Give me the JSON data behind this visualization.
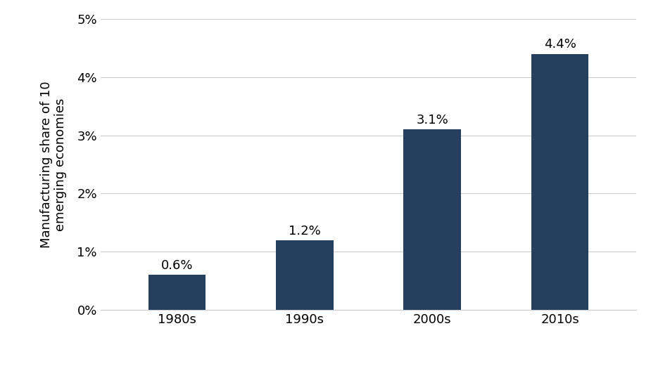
{
  "categories": [
    "1980s",
    "1990s",
    "2000s",
    "2010s"
  ],
  "values": [
    0.6,
    1.2,
    3.1,
    4.4
  ],
  "bar_color": "#253f5e",
  "ylabel": "Manufacturing share of 10\nemerging economies",
  "ylim": [
    0,
    5
  ],
  "yticks": [
    0,
    1,
    2,
    3,
    4,
    5
  ],
  "ytick_labels": [
    "0%",
    "1%",
    "2%",
    "3%",
    "4%",
    "5%"
  ],
  "bar_labels": [
    "0.6%",
    "1.2%",
    "3.1%",
    "4.4%"
  ],
  "background_color": "#ffffff",
  "grid_color": "#cccccc",
  "label_fontsize": 13,
  "tick_fontsize": 13,
  "ylabel_fontsize": 13,
  "bar_width": 0.45
}
